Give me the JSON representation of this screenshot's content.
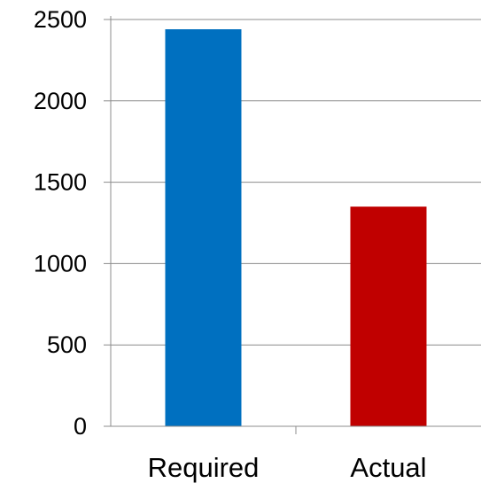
{
  "chart_data": {
    "type": "bar",
    "categories": [
      "Required",
      "Actual"
    ],
    "values": [
      2440,
      1350
    ],
    "bar_colors": [
      "#0070C0",
      "#C00000"
    ],
    "ylim": [
      0,
      2500
    ],
    "yticks": [
      "0",
      "500",
      "1000",
      "1500",
      "2000",
      "2500"
    ],
    "grid": true,
    "legend": "none"
  }
}
